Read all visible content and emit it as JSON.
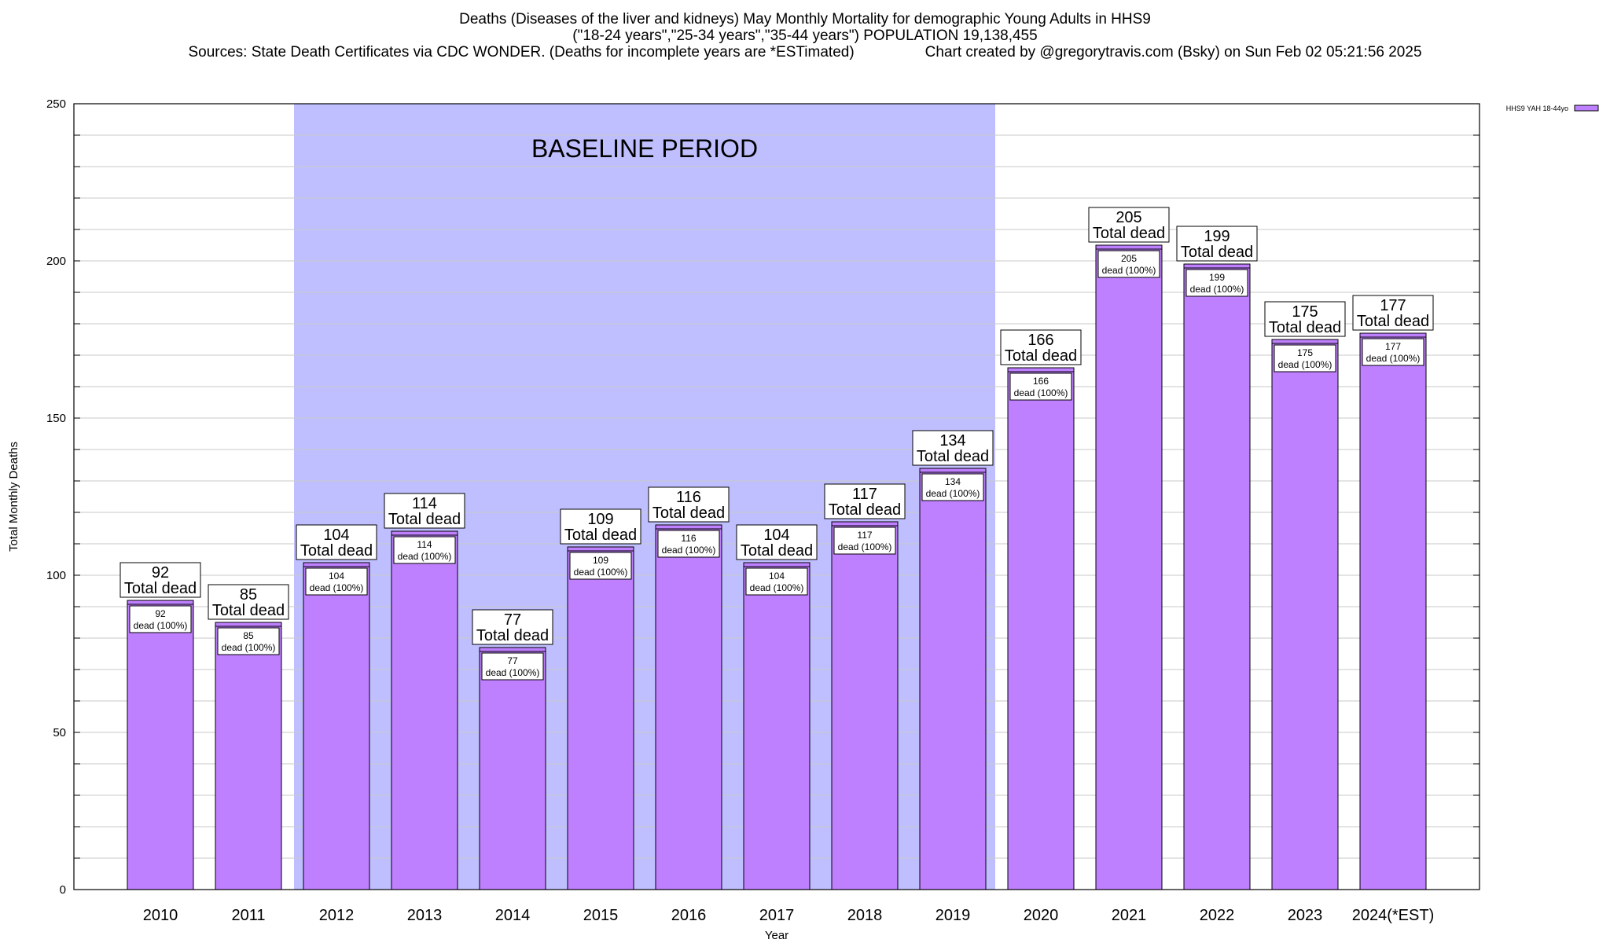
{
  "title": {
    "line1": "Deaths (Diseases of the liver and kidneys) May Monthly Mortality for demographic Young Adults in HHS9",
    "line2": "(\"18-24 years\",\"25-34 years\",\"35-44 years\") POPULATION 19,138,455",
    "sources": "Sources: State Death Certificates via CDC WONDER. (Deaths for incomplete years are *ESTimated)",
    "credit": "Chart created by @gregorytravis.com (Bsky) on Sun Feb 02 05:21:56 2025"
  },
  "colors": {
    "bar_fill": "#bf80ff",
    "bar_stroke": "#000000",
    "baseline_shade": "#bfbfff",
    "grid": "#c8c8c8"
  },
  "chart_data": {
    "type": "bar",
    "xlabel": "Year",
    "ylabel": "Total Monthly Deaths",
    "ylim": [
      0,
      250
    ],
    "yticks": [
      0,
      50,
      100,
      150,
      200,
      250
    ],
    "grid": true,
    "legend_position": "top-right",
    "categories": [
      "2010",
      "2011",
      "2012",
      "2013",
      "2014",
      "2015",
      "2016",
      "2017",
      "2018",
      "2019",
      "2020",
      "2021",
      "2022",
      "2023",
      "2024(*EST)"
    ],
    "series": [
      {
        "name": "HHS9 YAH 18-44yo",
        "values": [
          92,
          85,
          104,
          114,
          77,
          109,
          116,
          104,
          117,
          134,
          166,
          205,
          199,
          175,
          177
        ]
      }
    ],
    "label_top_suffix": "Total dead",
    "label_inner_suffix": "dead (100%)",
    "baseline_period": {
      "label": "BASELINE PERIOD",
      "start": "2012",
      "end": "2019"
    }
  }
}
